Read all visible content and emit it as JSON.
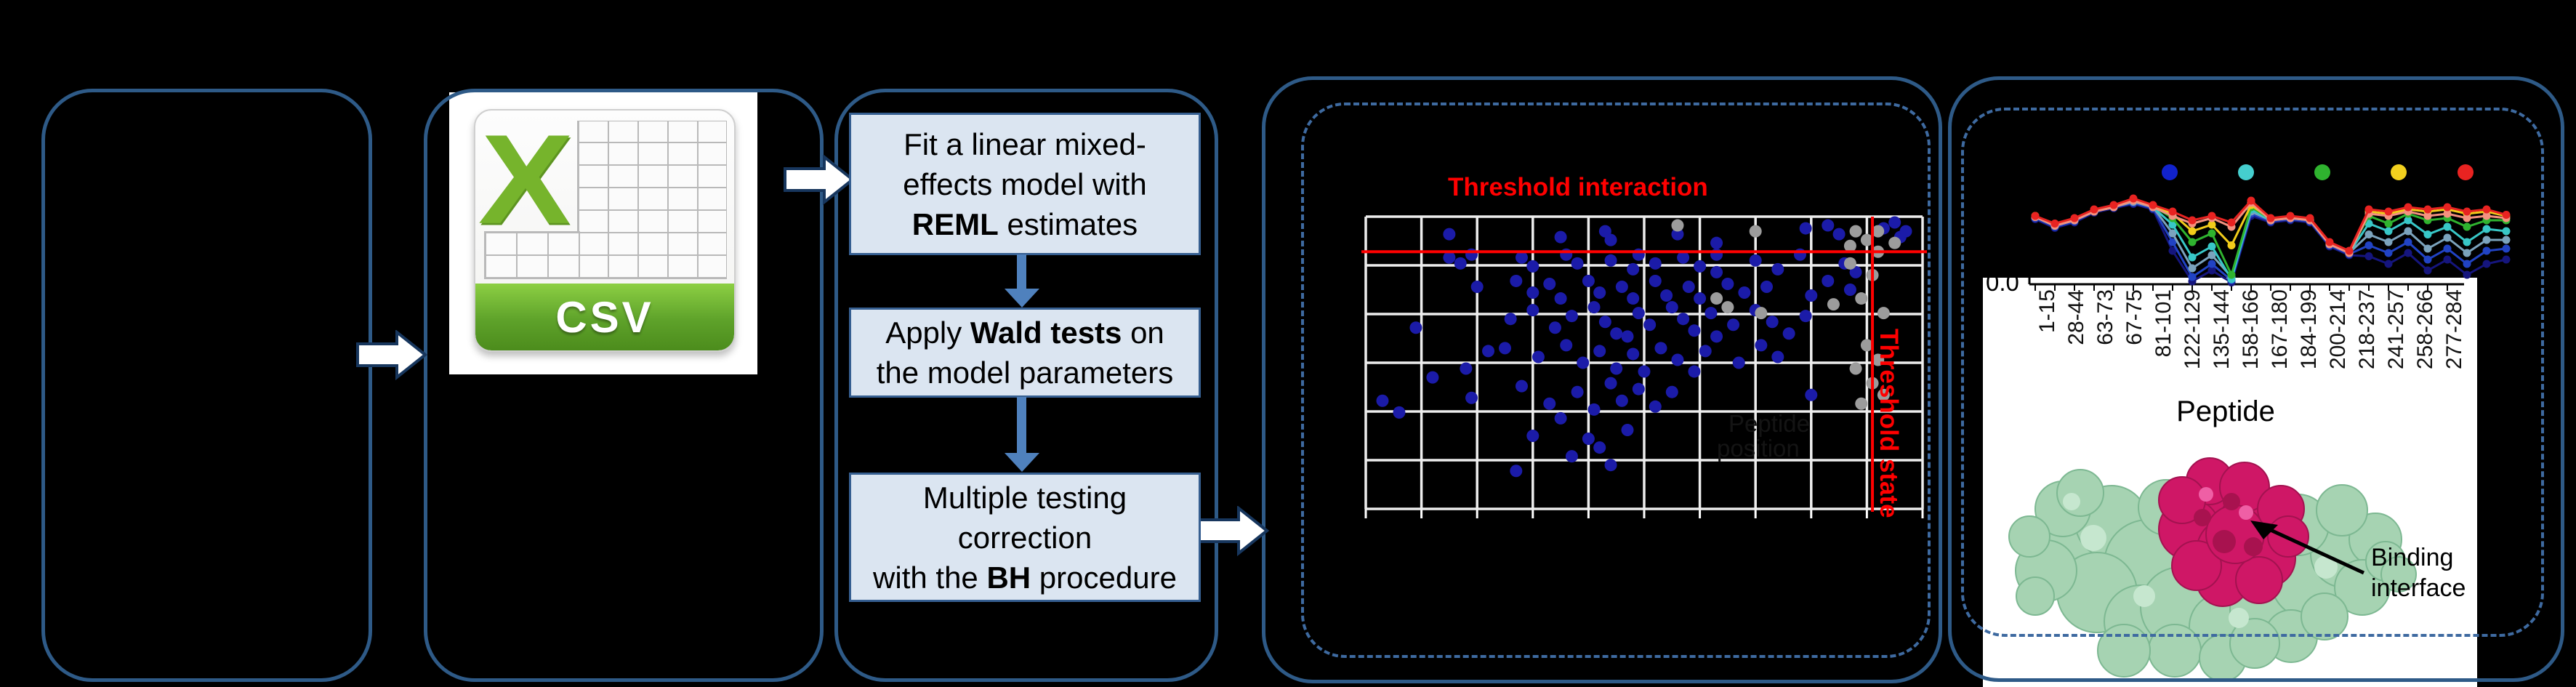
{
  "panels": {
    "input_panel": {
      "name": "empty-input-panel"
    },
    "csv_panel": {
      "name": "csv-export-panel"
    },
    "stats_panel": {
      "name": "statistical-analysis-panel"
    },
    "scatter_panel": {
      "name": "threshold-plot-panel"
    },
    "visual_panel": {
      "name": "peptide-visualization-panel"
    }
  },
  "csv_icon": {
    "x_letter": "X",
    "label": "CSV"
  },
  "flowchart": {
    "steps": [
      {
        "lines": [
          [
            {
              "t": "Fit a linear mixed-"
            }
          ],
          [
            {
              "t": "effects model with"
            }
          ],
          [
            {
              "t": "REML",
              "b": true
            },
            {
              "t": " estimates"
            }
          ]
        ]
      },
      {
        "lines": [
          [
            {
              "t": "Apply "
            },
            {
              "t": "Wald tests",
              "b": true
            },
            {
              "t": " on"
            }
          ],
          [
            {
              "t": "the model parameters"
            }
          ]
        ]
      },
      {
        "lines": [
          [
            {
              "t": "Multiple testing"
            }
          ],
          [
            {
              "t": "correction"
            }
          ],
          [
            {
              "t": "with the "
            },
            {
              "t": "BH",
              "b": true
            },
            {
              "t": " procedure"
            }
          ]
        ]
      }
    ]
  },
  "chart_data": [
    {
      "type": "scatter",
      "title": "Threshold interaction",
      "threshold_state_label": "Threshold state",
      "faint_label_line1": "Peptide",
      "faint_label_line2": "position",
      "grid": {
        "cols": 10,
        "rows": 6
      },
      "threshold_interaction_y_pct": 12,
      "threshold_state_x_pct": 91,
      "point_colors": {
        "blue": "#1b1ba8",
        "gray": "#9c9c9c",
        "threshold": "#ff0000",
        "grid": "#ededed"
      },
      "blue_points": [
        [
          3,
          63
        ],
        [
          6,
          67
        ],
        [
          9,
          38
        ],
        [
          12,
          55
        ],
        [
          15,
          6
        ],
        [
          15,
          14
        ],
        [
          17,
          16
        ],
        [
          19,
          13
        ],
        [
          18,
          52
        ],
        [
          19,
          62
        ],
        [
          20,
          24
        ],
        [
          22,
          46
        ],
        [
          25,
          45
        ],
        [
          26,
          35
        ],
        [
          27,
          22
        ],
        [
          27,
          87
        ],
        [
          28,
          14
        ],
        [
          28,
          58
        ],
        [
          30,
          17
        ],
        [
          30,
          26
        ],
        [
          30,
          32
        ],
        [
          30,
          75
        ],
        [
          31,
          48
        ],
        [
          33,
          23
        ],
        [
          33,
          64
        ],
        [
          34,
          38
        ],
        [
          35,
          7
        ],
        [
          35,
          28
        ],
        [
          35,
          69
        ],
        [
          36,
          13
        ],
        [
          36,
          44
        ],
        [
          37,
          34
        ],
        [
          37,
          82
        ],
        [
          38,
          16
        ],
        [
          38,
          60
        ],
        [
          39,
          50
        ],
        [
          40,
          22
        ],
        [
          40,
          76
        ],
        [
          41,
          31
        ],
        [
          41,
          66
        ],
        [
          42,
          26
        ],
        [
          42,
          46
        ],
        [
          42,
          79
        ],
        [
          43,
          5
        ],
        [
          43,
          36
        ],
        [
          44,
          8
        ],
        [
          44,
          15
        ],
        [
          44,
          57
        ],
        [
          44,
          85
        ],
        [
          45,
          40
        ],
        [
          45,
          52
        ],
        [
          46,
          24
        ],
        [
          46,
          63
        ],
        [
          47,
          41
        ],
        [
          47,
          73
        ],
        [
          48,
          18
        ],
        [
          48,
          28
        ],
        [
          48,
          47
        ],
        [
          49,
          13
        ],
        [
          49,
          33
        ],
        [
          49,
          59
        ],
        [
          50,
          53
        ],
        [
          51,
          37
        ],
        [
          52,
          16
        ],
        [
          52,
          22
        ],
        [
          52,
          65
        ],
        [
          53,
          45
        ],
        [
          54,
          27
        ],
        [
          55,
          31
        ],
        [
          55,
          60
        ],
        [
          56,
          6
        ],
        [
          56,
          49
        ],
        [
          57,
          14
        ],
        [
          57,
          35
        ],
        [
          58,
          24
        ],
        [
          59,
          39
        ],
        [
          59,
          53
        ],
        [
          60,
          17
        ],
        [
          60,
          28
        ],
        [
          61,
          46
        ],
        [
          62,
          33
        ],
        [
          63,
          9
        ],
        [
          63,
          13
        ],
        [
          63,
          19
        ],
        [
          63,
          41
        ],
        [
          65,
          23
        ],
        [
          66,
          37
        ],
        [
          67,
          50
        ],
        [
          68,
          26
        ],
        [
          70,
          15
        ],
        [
          70,
          32
        ],
        [
          71,
          44
        ],
        [
          72,
          24
        ],
        [
          73,
          36
        ],
        [
          74,
          18
        ],
        [
          74,
          48
        ],
        [
          76,
          40
        ],
        [
          78,
          13
        ],
        [
          79,
          4
        ],
        [
          79,
          34
        ],
        [
          80,
          27
        ],
        [
          80,
          61
        ],
        [
          83,
          3
        ],
        [
          83,
          22
        ],
        [
          85,
          6
        ],
        [
          86,
          16
        ],
        [
          87,
          25
        ],
        [
          88,
          19
        ],
        [
          93,
          4
        ],
        [
          95,
          2
        ],
        [
          96,
          7
        ],
        [
          97,
          5
        ]
      ],
      "gray_points": [
        [
          56,
          3
        ],
        [
          63,
          28
        ],
        [
          65,
          31
        ],
        [
          70,
          5
        ],
        [
          71,
          33
        ],
        [
          84,
          30
        ],
        [
          87,
          10
        ],
        [
          87,
          16
        ],
        [
          88,
          5
        ],
        [
          88,
          52
        ],
        [
          89,
          28
        ],
        [
          89,
          64
        ],
        [
          90,
          8
        ],
        [
          90,
          44
        ],
        [
          91,
          20
        ],
        [
          91,
          57
        ],
        [
          92,
          5
        ],
        [
          92,
          12
        ],
        [
          92,
          49
        ],
        [
          93,
          33
        ],
        [
          93,
          61
        ],
        [
          95,
          9
        ]
      ]
    },
    {
      "type": "line",
      "y_axis_tick": "0.0",
      "categories": [
        "1-15",
        "28-44",
        "63-73",
        "67-75",
        "81-101",
        "122-129",
        "135-144",
        "158-166",
        "167-180",
        "184-199",
        "200-214",
        "218-237",
        "241-257",
        "258-266",
        "277-284"
      ],
      "legend_colors": [
        "#1122cc",
        "#45cfcf",
        "#2fb32f",
        "#f2d01e",
        "#e82321"
      ],
      "series": [
        {
          "name": "navy",
          "color": "#15157d",
          "values": [
            0.59,
            0.51,
            0.56,
            0.65,
            0.69,
            0.73,
            0.68,
            0.3,
            0.02,
            0.12,
            0.01,
            0.62,
            0.56,
            0.58,
            0.56,
            0.34,
            0.26,
            0.25,
            0.18,
            0.28,
            0.12,
            0.22,
            0.08,
            0.18,
            0.22
          ]
        },
        {
          "name": "blue",
          "color": "#2143c4",
          "values": [
            0.6,
            0.52,
            0.57,
            0.66,
            0.7,
            0.74,
            0.69,
            0.38,
            0.06,
            0.18,
            0.03,
            0.64,
            0.57,
            0.59,
            0.57,
            0.35,
            0.27,
            0.35,
            0.28,
            0.38,
            0.22,
            0.32,
            0.18,
            0.3,
            0.32
          ]
        },
        {
          "name": "steel",
          "color": "#7ba3bd",
          "values": [
            0.61,
            0.53,
            0.58,
            0.66,
            0.7,
            0.75,
            0.7,
            0.46,
            0.14,
            0.26,
            0.06,
            0.66,
            0.58,
            0.6,
            0.58,
            0.36,
            0.28,
            0.45,
            0.38,
            0.48,
            0.32,
            0.42,
            0.28,
            0.4,
            0.4
          ]
        },
        {
          "name": "cyan",
          "color": "#38c7c7",
          "values": [
            0.61,
            0.53,
            0.58,
            0.66,
            0.7,
            0.76,
            0.7,
            0.54,
            0.24,
            0.34,
            0.04,
            0.68,
            0.58,
            0.6,
            0.58,
            0.36,
            0.28,
            0.55,
            0.48,
            0.58,
            0.45,
            0.52,
            0.38,
            0.5,
            0.48
          ]
        },
        {
          "name": "green",
          "color": "#2fb32f",
          "values": [
            0.62,
            0.54,
            0.59,
            0.67,
            0.71,
            0.77,
            0.71,
            0.6,
            0.38,
            0.46,
            0.08,
            0.7,
            0.59,
            0.61,
            0.59,
            0.37,
            0.29,
            0.62,
            0.55,
            0.64,
            0.58,
            0.6,
            0.52,
            0.58,
            0.58
          ]
        },
        {
          "name": "yellow",
          "color": "#f2cc1a",
          "values": [
            0.62,
            0.54,
            0.59,
            0.67,
            0.71,
            0.77,
            0.71,
            0.64,
            0.48,
            0.54,
            0.35,
            0.72,
            0.59,
            0.61,
            0.59,
            0.37,
            0.29,
            0.66,
            0.64,
            0.68,
            0.66,
            0.68,
            0.64,
            0.66,
            0.62
          ]
        },
        {
          "name": "salmon",
          "color": "#f4917f",
          "values": [
            0.61,
            0.53,
            0.58,
            0.66,
            0.7,
            0.76,
            0.7,
            0.62,
            0.55,
            0.6,
            0.52,
            0.74,
            0.58,
            0.6,
            0.58,
            0.36,
            0.28,
            0.64,
            0.62,
            0.66,
            0.62,
            0.64,
            0.6,
            0.62,
            0.6
          ]
        },
        {
          "name": "red",
          "color": "#e82321",
          "values": [
            0.62,
            0.55,
            0.6,
            0.68,
            0.72,
            0.78,
            0.72,
            0.66,
            0.58,
            0.62,
            0.56,
            0.76,
            0.6,
            0.62,
            0.6,
            0.38,
            0.3,
            0.68,
            0.66,
            0.7,
            0.68,
            0.7,
            0.66,
            0.68,
            0.63
          ]
        }
      ]
    }
  ],
  "structure": {
    "peptide_label": "Peptide",
    "annotation_line1": "Binding",
    "annotation_line2": "interface"
  }
}
